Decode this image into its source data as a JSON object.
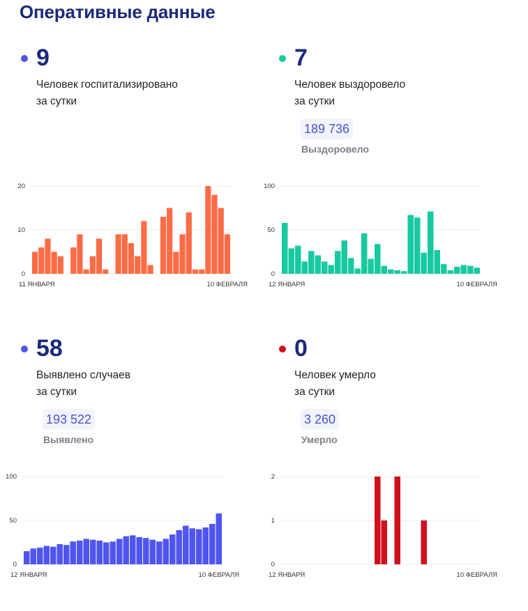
{
  "page_title": "Оперативные данные",
  "panels": [
    {
      "id": "hospitalized",
      "value": "9",
      "desc_line1": "Человек госпитализировано",
      "desc_line2": "за сутки",
      "dot_color": "#4f55e8",
      "total": null,
      "total_label": null
    },
    {
      "id": "recovered",
      "value": "7",
      "desc_line1": "Человек выздоровело",
      "desc_line2": "за сутки",
      "dot_color": "#17c9a1",
      "total": "189 736",
      "total_label": "Выздоровело"
    },
    {
      "id": "cases",
      "value": "58",
      "desc_line1": "Выявлено случаев",
      "desc_line2": "за сутки",
      "dot_color": "#4f55e8",
      "total": "193 522",
      "total_label": "Выявлено"
    },
    {
      "id": "deaths",
      "value": "0",
      "desc_line1": "Человек умерло",
      "desc_line2": "за сутки",
      "dot_color": "#d0101b",
      "total": "3 260",
      "total_label": "Умерло"
    }
  ],
  "chart_data": [
    {
      "type": "bar",
      "title": "Человек госпитализировано за сутки",
      "color": "#ff6b45",
      "x_start_label": "11 ЯНВАРЯ",
      "x_end_label": "10 ФЕВРАЛЯ",
      "yticks": [
        0,
        10,
        20
      ],
      "ylim": [
        0,
        20
      ],
      "grid": true,
      "values": [
        5,
        6,
        8,
        5,
        4,
        0,
        6,
        9,
        1,
        4,
        8,
        1,
        0,
        9,
        9,
        7,
        4,
        12,
        2,
        0,
        13,
        15,
        5,
        9,
        14,
        1,
        1,
        20,
        18,
        15,
        9
      ]
    },
    {
      "type": "bar",
      "title": "Человек выздоровело за сутки",
      "color": "#17c9a1",
      "x_start_label": "12 ЯНВАРЯ",
      "x_end_label": "10 ФЕВРАЛЯ",
      "yticks": [
        0,
        50,
        100
      ],
      "ylim": [
        0,
        100
      ],
      "grid": true,
      "values": [
        58,
        29,
        32,
        14,
        26,
        21,
        14,
        10,
        26,
        38,
        18,
        6,
        46,
        17,
        34,
        9,
        5,
        4,
        3,
        67,
        64,
        24,
        71,
        27,
        11,
        4,
        8,
        10,
        9,
        7
      ]
    },
    {
      "type": "bar",
      "title": "Выявлено случаев за сутки",
      "color": "#4f55f0",
      "x_start_label": "12 ЯНВАРЯ",
      "x_end_label": "10 ФЕВРАЛЯ",
      "yticks": [
        0,
        50,
        100
      ],
      "ylim": [
        0,
        100
      ],
      "grid": true,
      "values": [
        15,
        18,
        19,
        21,
        20,
        23,
        22,
        26,
        27,
        29,
        28,
        27,
        25,
        26,
        29,
        32,
        33,
        31,
        30,
        28,
        26,
        29,
        34,
        39,
        44,
        41,
        40,
        42,
        46,
        58
      ]
    },
    {
      "type": "bar",
      "title": "Человек умерло за сутки",
      "color": "#d0101b",
      "x_start_label": "12 ЯНВАРЯ",
      "x_end_label": "10 ФЕВРАЛЯ",
      "yticks": [
        0,
        1,
        2
      ],
      "ylim": [
        0,
        2
      ],
      "grid": true,
      "values": [
        0,
        0,
        0,
        0,
        0,
        0,
        0,
        0,
        0,
        0,
        0,
        0,
        0,
        0,
        2,
        1,
        0,
        2,
        0,
        0,
        0,
        1,
        0,
        0,
        0,
        0,
        0,
        0,
        0,
        0
      ]
    }
  ]
}
